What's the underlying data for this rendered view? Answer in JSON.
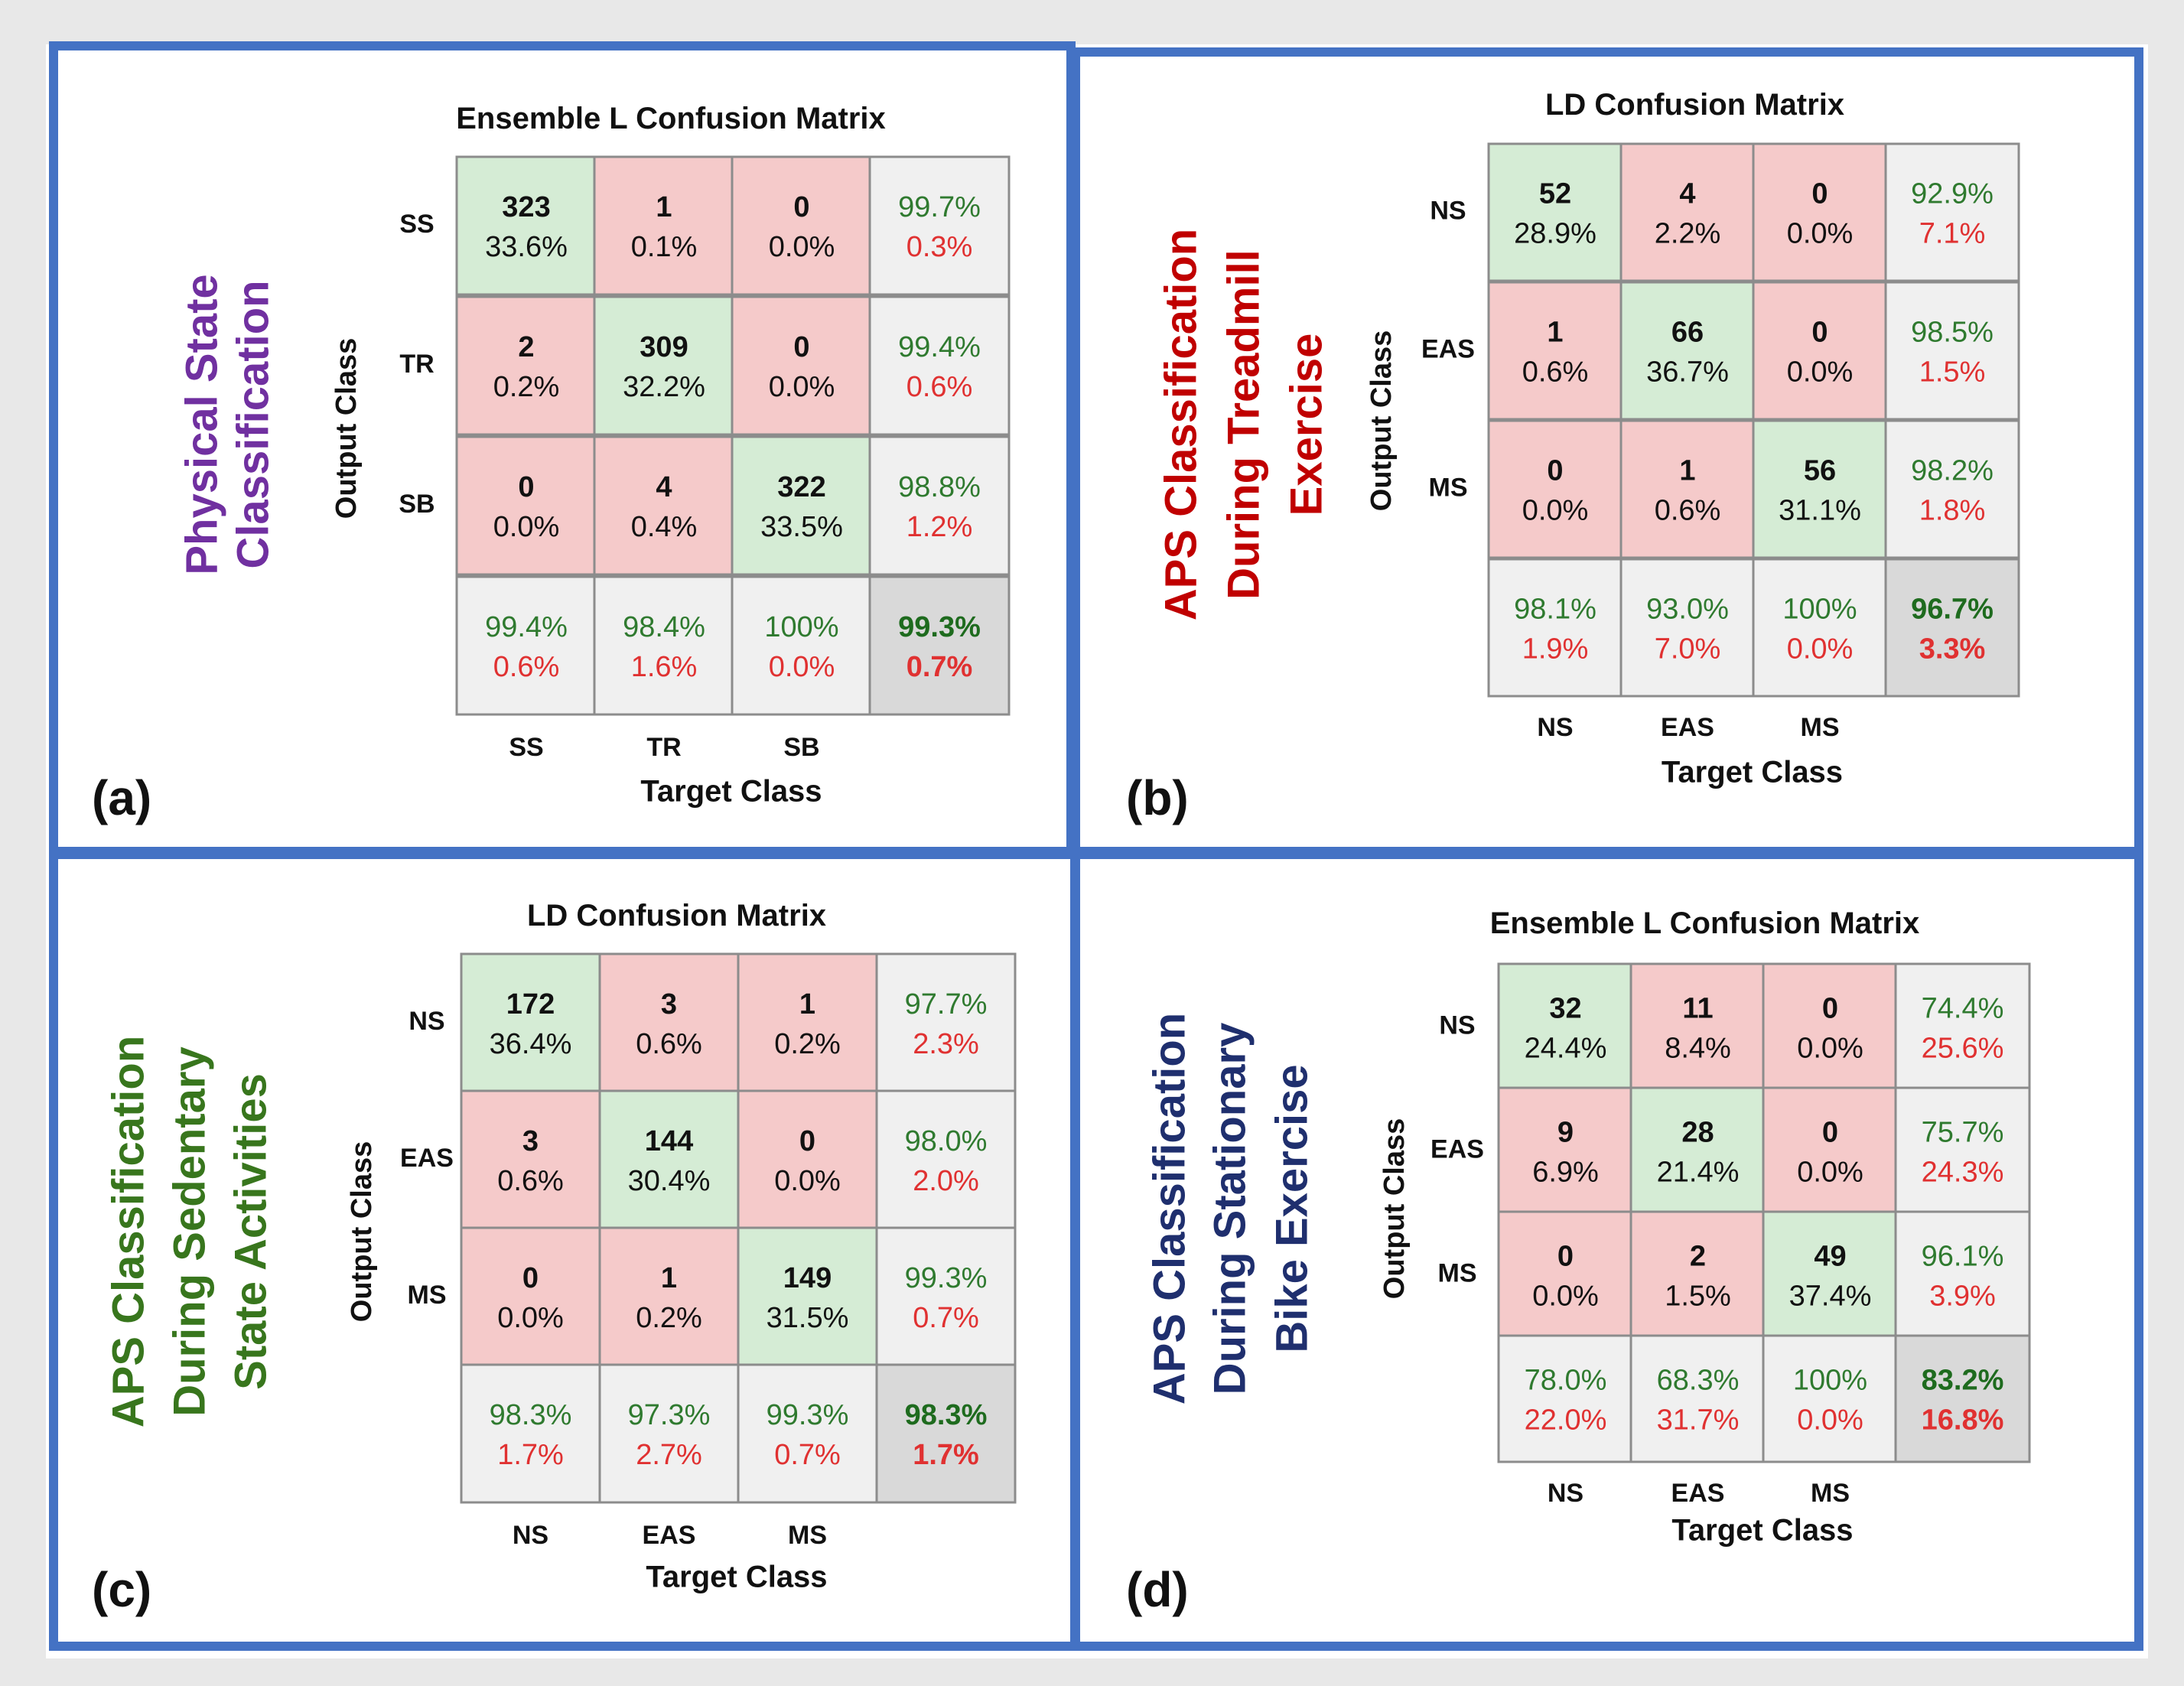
{
  "colors": {
    "frame": "#4472c4",
    "page_bg": "#e8e8e8",
    "diag_fill": "#d5ecd5",
    "offdiag_fill": "#f5caca",
    "summary_fill": "#f0f0f0",
    "total_fill": "#d9d9d9",
    "grid_line": "#8c8c8c",
    "good_text": "#2f7a2f",
    "bad_text": "#e03131",
    "total_good_text": "#1e6b1e",
    "total_bad_text": "#e03131",
    "dark_text": "#111111"
  },
  "chart_data": [
    {
      "type": "heatmap",
      "panel_label": "(a)",
      "side_title": [
        "Physical State",
        "Classification"
      ],
      "side_title_color": "#7030a0",
      "title": "Ensemble L Confusion Matrix",
      "ylabel": "Output Class",
      "xlabel": "Target Class",
      "classes": [
        "SS",
        "TR",
        "SB"
      ],
      "counts": [
        [
          323,
          1,
          0
        ],
        [
          2,
          309,
          0
        ],
        [
          0,
          4,
          322
        ]
      ],
      "cell_pct": [
        [
          "33.6%",
          "0.1%",
          "0.0%"
        ],
        [
          "0.2%",
          "32.2%",
          "0.0%"
        ],
        [
          "0.0%",
          "0.4%",
          "33.5%"
        ]
      ],
      "row_summary": [
        [
          "99.7%",
          "0.3%"
        ],
        [
          "99.4%",
          "0.6%"
        ],
        [
          "98.8%",
          "1.2%"
        ]
      ],
      "col_summary": [
        [
          "99.4%",
          "0.6%"
        ],
        [
          "98.4%",
          "1.6%"
        ],
        [
          "100%",
          "0.0%"
        ]
      ],
      "total": [
        "99.3%",
        "0.7%"
      ]
    },
    {
      "type": "heatmap",
      "panel_label": "(b)",
      "side_title": [
        "APS Classification",
        "During Treadmill",
        "Exercise"
      ],
      "side_title_color": "#c00000",
      "title": "LD Confusion Matrix",
      "ylabel": "Output Class",
      "xlabel": "Target Class",
      "classes": [
        "NS",
        "EAS",
        "MS"
      ],
      "counts": [
        [
          52,
          4,
          0
        ],
        [
          1,
          66,
          0
        ],
        [
          0,
          1,
          56
        ]
      ],
      "cell_pct": [
        [
          "28.9%",
          "2.2%",
          "0.0%"
        ],
        [
          "0.6%",
          "36.7%",
          "0.0%"
        ],
        [
          "0.0%",
          "0.6%",
          "31.1%"
        ]
      ],
      "row_summary": [
        [
          "92.9%",
          "7.1%"
        ],
        [
          "98.5%",
          "1.5%"
        ],
        [
          "98.2%",
          "1.8%"
        ]
      ],
      "col_summary": [
        [
          "98.1%",
          "1.9%"
        ],
        [
          "93.0%",
          "7.0%"
        ],
        [
          "100%",
          "0.0%"
        ]
      ],
      "total": [
        "96.7%",
        "3.3%"
      ]
    },
    {
      "type": "heatmap",
      "panel_label": "(c)",
      "side_title": [
        "APS Classification",
        "During Sedentary",
        "State Activities"
      ],
      "side_title_color": "#38761d",
      "title": "LD Confusion Matrix",
      "ylabel": "Output Class",
      "xlabel": "Target Class",
      "classes": [
        "NS",
        "EAS",
        "MS"
      ],
      "counts": [
        [
          172,
          3,
          1
        ],
        [
          3,
          144,
          0
        ],
        [
          0,
          1,
          149
        ]
      ],
      "cell_pct": [
        [
          "36.4%",
          "0.6%",
          "0.2%"
        ],
        [
          "0.6%",
          "30.4%",
          "0.0%"
        ],
        [
          "0.0%",
          "0.2%",
          "31.5%"
        ]
      ],
      "row_summary": [
        [
          "97.7%",
          "2.3%"
        ],
        [
          "98.0%",
          "2.0%"
        ],
        [
          "99.3%",
          "0.7%"
        ]
      ],
      "col_summary": [
        [
          "98.3%",
          "1.7%"
        ],
        [
          "97.3%",
          "2.7%"
        ],
        [
          "99.3%",
          "0.7%"
        ]
      ],
      "total": [
        "98.3%",
        "1.7%"
      ]
    },
    {
      "type": "heatmap",
      "panel_label": "(d)",
      "side_title": [
        "APS Classification",
        "During Stationary",
        "Bike Exercise"
      ],
      "side_title_color": "#1f2f6e",
      "title": "Ensemble L Confusion Matrix",
      "ylabel": "Output Class",
      "xlabel": "Target Class",
      "classes": [
        "NS",
        "EAS",
        "MS"
      ],
      "counts": [
        [
          32,
          11,
          0
        ],
        [
          9,
          28,
          0
        ],
        [
          0,
          2,
          49
        ]
      ],
      "cell_pct": [
        [
          "24.4%",
          "8.4%",
          "0.0%"
        ],
        [
          "6.9%",
          "21.4%",
          "0.0%"
        ],
        [
          "0.0%",
          "1.5%",
          "37.4%"
        ]
      ],
      "row_summary": [
        [
          "74.4%",
          "25.6%"
        ],
        [
          "75.7%",
          "24.3%"
        ],
        [
          "96.1%",
          "3.9%"
        ]
      ],
      "col_summary": [
        [
          "78.0%",
          "22.0%"
        ],
        [
          "68.3%",
          "31.7%"
        ],
        [
          "100%",
          "0.0%"
        ]
      ],
      "total": [
        "83.2%",
        "16.8%"
      ]
    }
  ]
}
